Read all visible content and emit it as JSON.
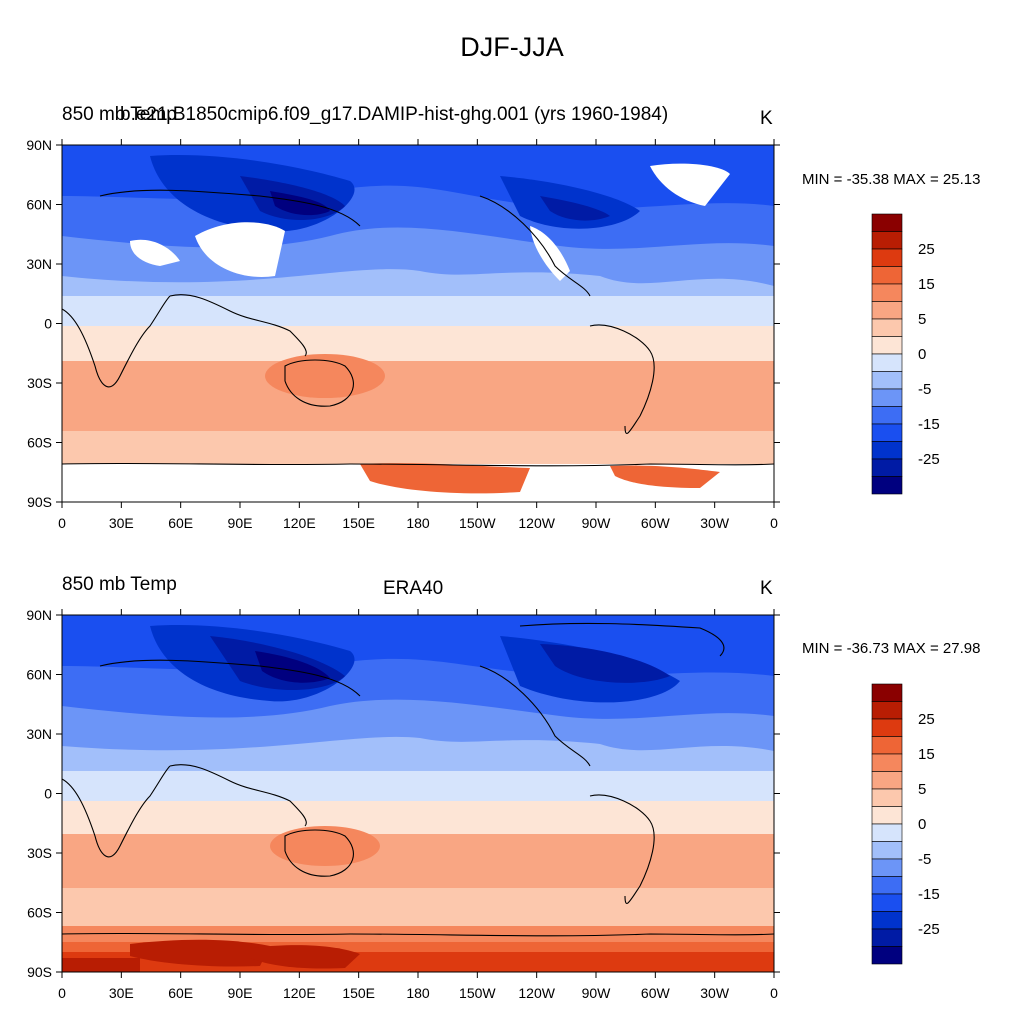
{
  "page": {
    "title": "DJF-JJA"
  },
  "colors": {
    "levels": [
      "#00007f",
      "#001ba5",
      "#0033cc",
      "#1a4ff0",
      "#3d6df4",
      "#6c95f7",
      "#a2bffa",
      "#d6e4fc",
      "#fde5d6",
      "#fcc8ad",
      "#f9a683",
      "#f5875d",
      "#ee6536",
      "#dd3a10",
      "#b81d03",
      "#8a0000"
    ],
    "land_outline": "#000000",
    "missing": "#ffffff"
  },
  "map_layout": {
    "lat_ticks": [
      "90N",
      "60N",
      "30N",
      "0",
      "30S",
      "60S",
      "90S"
    ],
    "lon_ticks": [
      "0",
      "30E",
      "60E",
      "90E",
      "120E",
      "150E",
      "180",
      "150W",
      "120W",
      "90W",
      "60W",
      "30W",
      "0"
    ]
  },
  "panels": [
    {
      "left_title": "850 mb Temp",
      "center_title": "b.e21.B1850cmip6.f09_g17.DAMIP-hist-ghg.001 (yrs 1960-1984)",
      "units": "K",
      "minmax": "MIN = -35.38 MAX =  25.13",
      "legend_labels": [
        "25",
        "15",
        "5",
        "0",
        "-5",
        "-15",
        "-25"
      ]
    },
    {
      "left_title": "850 mb Temp",
      "center_title": "ERA40",
      "units": "K",
      "minmax": "MIN = -36.73 MAX =  27.98",
      "legend_labels": [
        "25",
        "15",
        "5",
        "0",
        "-5",
        "-15",
        "-25"
      ]
    }
  ]
}
